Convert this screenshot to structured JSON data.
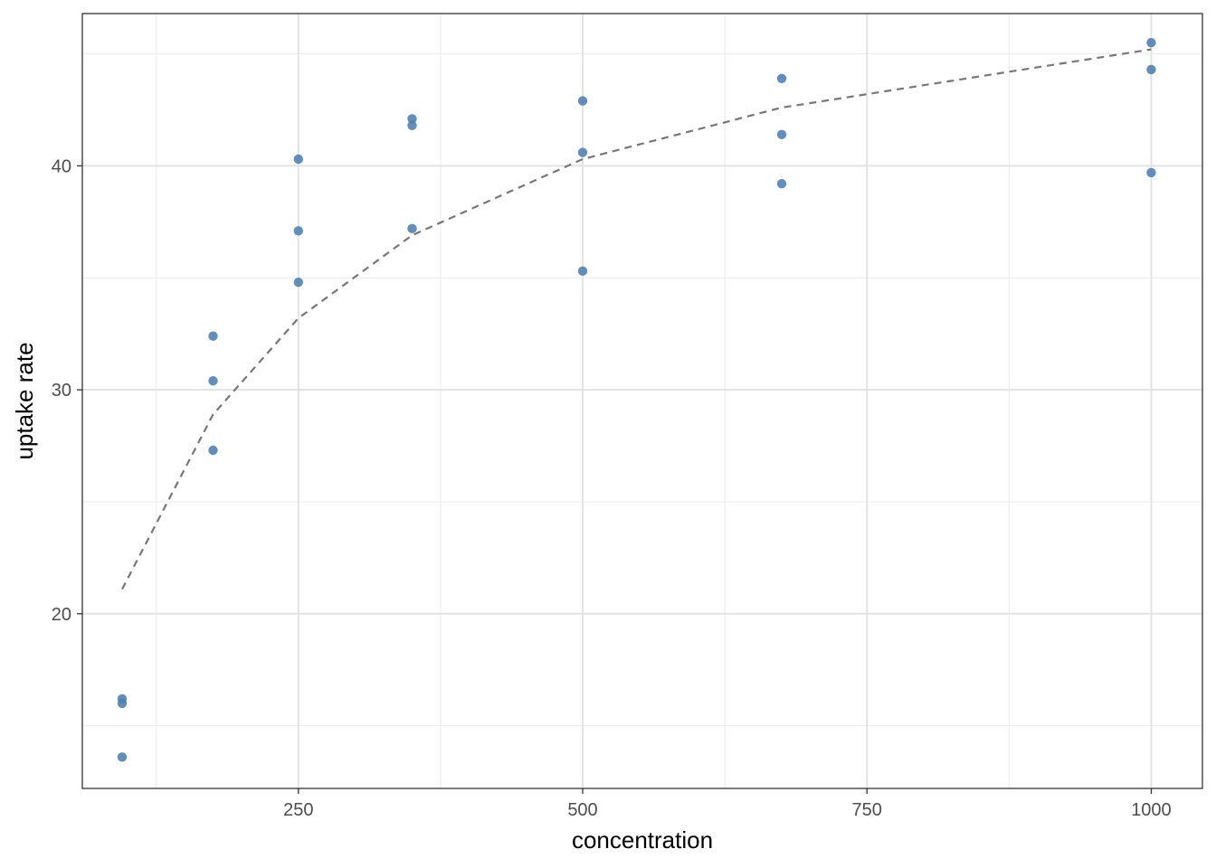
{
  "chart_data": {
    "type": "scatter",
    "title": "",
    "xlabel": "concentration",
    "ylabel": "uptake rate",
    "xlim": [
      60,
      1045
    ],
    "ylim": [
      12.2,
      46.8
    ],
    "x_ticks": [
      250,
      500,
      750,
      1000
    ],
    "x_tick_labels": [
      "250",
      "500",
      "750",
      "1000"
    ],
    "x_minor_ticks": [
      125,
      375,
      625,
      875
    ],
    "y_ticks": [
      20,
      30,
      40
    ],
    "y_tick_labels": [
      "20",
      "30",
      "40"
    ],
    "y_minor_ticks": [
      15,
      25,
      35,
      45
    ],
    "grid": true,
    "legend": "none",
    "points": {
      "name": "",
      "color": "#4a7fb5",
      "x": [
        95,
        95,
        95,
        175,
        175,
        175,
        250,
        250,
        250,
        350,
        350,
        350,
        500,
        500,
        500,
        675,
        675,
        675,
        1000,
        1000,
        1000
      ],
      "y": [
        16.2,
        16.0,
        13.6,
        32.4,
        30.4,
        27.3,
        40.3,
        37.1,
        34.8,
        42.1,
        41.8,
        37.2,
        42.9,
        40.6,
        35.3,
        43.9,
        41.4,
        39.2,
        45.5,
        44.3,
        39.7
      ]
    },
    "fit_line": {
      "name": "",
      "style": "dashed",
      "color": "#777777",
      "x": [
        95,
        175,
        250,
        350,
        500,
        675,
        1000
      ],
      "y": [
        21.1,
        28.9,
        33.2,
        36.9,
        40.3,
        42.6,
        45.2
      ]
    }
  }
}
